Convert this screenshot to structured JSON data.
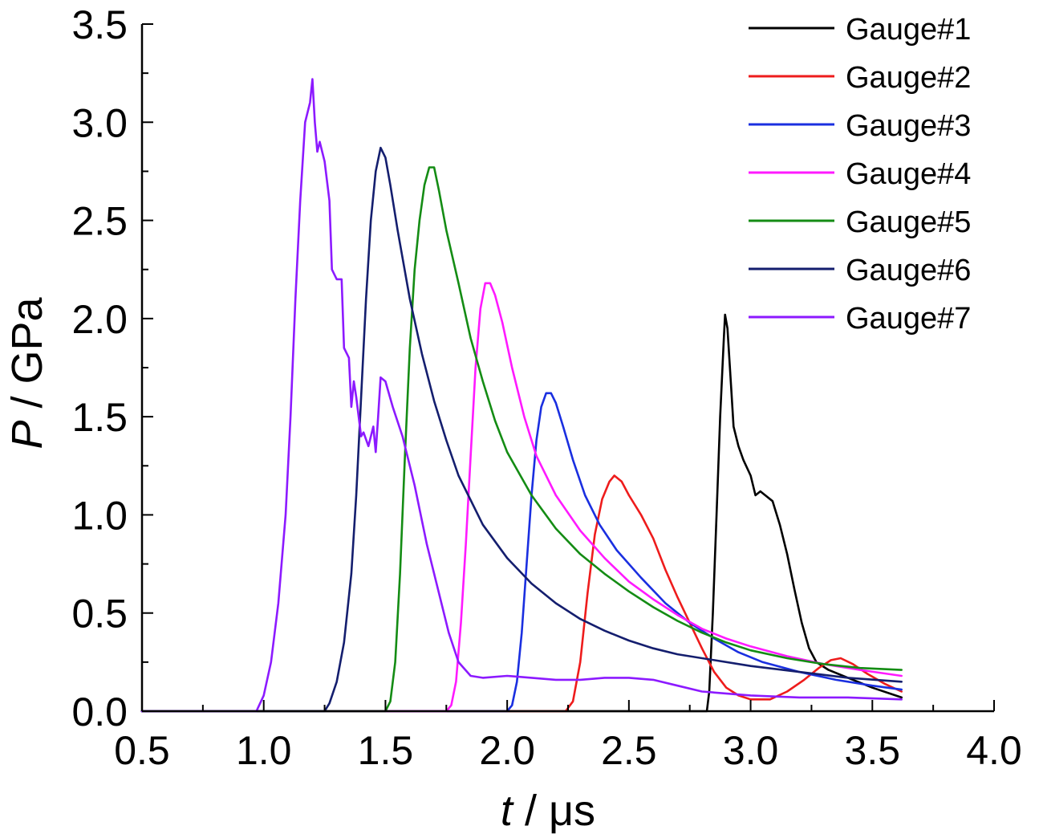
{
  "chart_data": {
    "type": "line",
    "title": "",
    "xlabel": {
      "symbol": "t",
      "unit": " / μs"
    },
    "ylabel": {
      "symbol": "P",
      "unit": " / GPa"
    },
    "xlim": [
      0.5,
      4.0
    ],
    "ylim": [
      0.0,
      3.5
    ],
    "xticks": [
      0.5,
      1.0,
      1.5,
      2.0,
      2.5,
      3.0,
      3.5,
      4.0
    ],
    "xtick_labels": [
      "0.5",
      "1.0",
      "1.5",
      "2.0",
      "2.5",
      "3.0",
      "3.5",
      "4.0"
    ],
    "yticks": [
      0.0,
      0.5,
      1.0,
      1.5,
      2.0,
      2.5,
      3.0,
      3.5
    ],
    "ytick_labels": [
      "0.0",
      "0.5",
      "1.0",
      "1.5",
      "2.0",
      "2.5",
      "3.0",
      "3.5"
    ],
    "grid": false,
    "legend": "top-right",
    "series": [
      {
        "name": "Gauge#1",
        "color": "#000000",
        "points": [
          [
            0.5,
            0
          ],
          [
            2.82,
            0
          ],
          [
            2.83,
            0.1
          ],
          [
            2.845,
            0.5
          ],
          [
            2.86,
            1.0
          ],
          [
            2.875,
            1.5
          ],
          [
            2.89,
            1.9
          ],
          [
            2.895,
            2.02
          ],
          [
            2.905,
            1.95
          ],
          [
            2.92,
            1.65
          ],
          [
            2.93,
            1.45
          ],
          [
            2.95,
            1.35
          ],
          [
            2.97,
            1.28
          ],
          [
            3.0,
            1.2
          ],
          [
            3.02,
            1.1
          ],
          [
            3.04,
            1.12
          ],
          [
            3.06,
            1.1
          ],
          [
            3.09,
            1.07
          ],
          [
            3.12,
            0.95
          ],
          [
            3.15,
            0.8
          ],
          [
            3.18,
            0.62
          ],
          [
            3.21,
            0.45
          ],
          [
            3.24,
            0.32
          ],
          [
            3.27,
            0.25
          ],
          [
            3.32,
            0.21
          ],
          [
            3.4,
            0.17
          ],
          [
            3.5,
            0.12
          ],
          [
            3.62,
            0.07
          ]
        ]
      },
      {
        "name": "Gauge#2",
        "color": "#ee1c1c",
        "points": [
          [
            0.5,
            0
          ],
          [
            2.24,
            0
          ],
          [
            2.27,
            0.05
          ],
          [
            2.3,
            0.25
          ],
          [
            2.33,
            0.6
          ],
          [
            2.36,
            0.9
          ],
          [
            2.39,
            1.08
          ],
          [
            2.42,
            1.17
          ],
          [
            2.44,
            1.2
          ],
          [
            2.47,
            1.17
          ],
          [
            2.5,
            1.1
          ],
          [
            2.55,
            1.0
          ],
          [
            2.6,
            0.88
          ],
          [
            2.65,
            0.72
          ],
          [
            2.7,
            0.58
          ],
          [
            2.75,
            0.45
          ],
          [
            2.8,
            0.32
          ],
          [
            2.85,
            0.2
          ],
          [
            2.9,
            0.12
          ],
          [
            2.95,
            0.08
          ],
          [
            3.0,
            0.06
          ],
          [
            3.08,
            0.06
          ],
          [
            3.15,
            0.1
          ],
          [
            3.22,
            0.16
          ],
          [
            3.28,
            0.22
          ],
          [
            3.33,
            0.26
          ],
          [
            3.37,
            0.27
          ],
          [
            3.42,
            0.24
          ],
          [
            3.48,
            0.19
          ],
          [
            3.55,
            0.14
          ],
          [
            3.62,
            0.1
          ]
        ]
      },
      {
        "name": "Gauge#3",
        "color": "#1a2fe0",
        "points": [
          [
            0.5,
            0
          ],
          [
            2.0,
            0
          ],
          [
            2.02,
            0.03
          ],
          [
            2.04,
            0.15
          ],
          [
            2.06,
            0.4
          ],
          [
            2.08,
            0.75
          ],
          [
            2.1,
            1.1
          ],
          [
            2.12,
            1.38
          ],
          [
            2.14,
            1.55
          ],
          [
            2.16,
            1.62
          ],
          [
            2.18,
            1.62
          ],
          [
            2.2,
            1.57
          ],
          [
            2.23,
            1.45
          ],
          [
            2.27,
            1.28
          ],
          [
            2.32,
            1.1
          ],
          [
            2.38,
            0.95
          ],
          [
            2.45,
            0.82
          ],
          [
            2.55,
            0.68
          ],
          [
            2.65,
            0.55
          ],
          [
            2.75,
            0.45
          ],
          [
            2.85,
            0.37
          ],
          [
            2.95,
            0.3
          ],
          [
            3.05,
            0.25
          ],
          [
            3.2,
            0.2
          ],
          [
            3.35,
            0.16
          ],
          [
            3.5,
            0.13
          ],
          [
            3.62,
            0.11
          ]
        ]
      },
      {
        "name": "Gauge#4",
        "color": "#ff1aff",
        "points": [
          [
            0.5,
            0
          ],
          [
            1.75,
            0
          ],
          [
            1.77,
            0.03
          ],
          [
            1.79,
            0.15
          ],
          [
            1.81,
            0.45
          ],
          [
            1.83,
            0.85
          ],
          [
            1.85,
            1.3
          ],
          [
            1.87,
            1.75
          ],
          [
            1.89,
            2.05
          ],
          [
            1.91,
            2.18
          ],
          [
            1.93,
            2.18
          ],
          [
            1.95,
            2.12
          ],
          [
            1.98,
            1.98
          ],
          [
            2.02,
            1.75
          ],
          [
            2.07,
            1.5
          ],
          [
            2.12,
            1.3
          ],
          [
            2.2,
            1.1
          ],
          [
            2.3,
            0.92
          ],
          [
            2.4,
            0.78
          ],
          [
            2.5,
            0.66
          ],
          [
            2.6,
            0.57
          ],
          [
            2.7,
            0.49
          ],
          [
            2.8,
            0.42
          ],
          [
            2.9,
            0.37
          ],
          [
            3.0,
            0.33
          ],
          [
            3.15,
            0.28
          ],
          [
            3.3,
            0.24
          ],
          [
            3.45,
            0.21
          ],
          [
            3.62,
            0.18
          ]
        ]
      },
      {
        "name": "Gauge#5",
        "color": "#148c14",
        "points": [
          [
            0.5,
            0
          ],
          [
            1.5,
            0
          ],
          [
            1.52,
            0.05
          ],
          [
            1.54,
            0.25
          ],
          [
            1.56,
            0.7
          ],
          [
            1.58,
            1.3
          ],
          [
            1.6,
            1.85
          ],
          [
            1.62,
            2.25
          ],
          [
            1.64,
            2.5
          ],
          [
            1.66,
            2.68
          ],
          [
            1.68,
            2.77
          ],
          [
            1.7,
            2.77
          ],
          [
            1.72,
            2.65
          ],
          [
            1.75,
            2.45
          ],
          [
            1.8,
            2.18
          ],
          [
            1.85,
            1.9
          ],
          [
            1.9,
            1.68
          ],
          [
            1.95,
            1.48
          ],
          [
            2.0,
            1.32
          ],
          [
            2.1,
            1.1
          ],
          [
            2.2,
            0.93
          ],
          [
            2.3,
            0.8
          ],
          [
            2.4,
            0.7
          ],
          [
            2.5,
            0.61
          ],
          [
            2.6,
            0.53
          ],
          [
            2.7,
            0.46
          ],
          [
            2.8,
            0.4
          ],
          [
            2.9,
            0.35
          ],
          [
            3.0,
            0.31
          ],
          [
            3.15,
            0.27
          ],
          [
            3.3,
            0.24
          ],
          [
            3.45,
            0.22
          ],
          [
            3.62,
            0.21
          ]
        ]
      },
      {
        "name": "Gauge#6",
        "color": "#141e6e",
        "points": [
          [
            0.5,
            0
          ],
          [
            1.25,
            0
          ],
          [
            1.27,
            0.04
          ],
          [
            1.3,
            0.15
          ],
          [
            1.33,
            0.35
          ],
          [
            1.36,
            0.7
          ],
          [
            1.38,
            1.1
          ],
          [
            1.4,
            1.6
          ],
          [
            1.42,
            2.1
          ],
          [
            1.44,
            2.5
          ],
          [
            1.46,
            2.75
          ],
          [
            1.48,
            2.87
          ],
          [
            1.5,
            2.82
          ],
          [
            1.52,
            2.68
          ],
          [
            1.55,
            2.45
          ],
          [
            1.6,
            2.1
          ],
          [
            1.65,
            1.82
          ],
          [
            1.7,
            1.58
          ],
          [
            1.75,
            1.38
          ],
          [
            1.8,
            1.2
          ],
          [
            1.9,
            0.95
          ],
          [
            2.0,
            0.78
          ],
          [
            2.1,
            0.65
          ],
          [
            2.2,
            0.55
          ],
          [
            2.3,
            0.47
          ],
          [
            2.4,
            0.41
          ],
          [
            2.5,
            0.36
          ],
          [
            2.6,
            0.32
          ],
          [
            2.7,
            0.29
          ],
          [
            2.85,
            0.26
          ],
          [
            3.0,
            0.23
          ],
          [
            3.2,
            0.2
          ],
          [
            3.4,
            0.17
          ],
          [
            3.62,
            0.15
          ]
        ]
      },
      {
        "name": "Gauge#7",
        "color": "#8c1aff",
        "points": [
          [
            0.5,
            0
          ],
          [
            0.97,
            0
          ],
          [
            1.0,
            0.08
          ],
          [
            1.03,
            0.25
          ],
          [
            1.06,
            0.55
          ],
          [
            1.09,
            1.0
          ],
          [
            1.11,
            1.5
          ],
          [
            1.13,
            2.1
          ],
          [
            1.15,
            2.6
          ],
          [
            1.17,
            3.0
          ],
          [
            1.19,
            3.1
          ],
          [
            1.2,
            3.22
          ],
          [
            1.21,
            3.0
          ],
          [
            1.22,
            2.85
          ],
          [
            1.23,
            2.9
          ],
          [
            1.25,
            2.8
          ],
          [
            1.27,
            2.6
          ],
          [
            1.28,
            2.25
          ],
          [
            1.3,
            2.2
          ],
          [
            1.32,
            2.2
          ],
          [
            1.33,
            1.85
          ],
          [
            1.35,
            1.8
          ],
          [
            1.36,
            1.55
          ],
          [
            1.37,
            1.68
          ],
          [
            1.38,
            1.6
          ],
          [
            1.4,
            1.4
          ],
          [
            1.41,
            1.42
          ],
          [
            1.43,
            1.35
          ],
          [
            1.45,
            1.45
          ],
          [
            1.46,
            1.32
          ],
          [
            1.47,
            1.5
          ],
          [
            1.48,
            1.7
          ],
          [
            1.5,
            1.68
          ],
          [
            1.53,
            1.55
          ],
          [
            1.57,
            1.4
          ],
          [
            1.62,
            1.15
          ],
          [
            1.67,
            0.85
          ],
          [
            1.72,
            0.6
          ],
          [
            1.76,
            0.4
          ],
          [
            1.8,
            0.25
          ],
          [
            1.85,
            0.18
          ],
          [
            1.9,
            0.17
          ],
          [
            2.0,
            0.18
          ],
          [
            2.1,
            0.17
          ],
          [
            2.2,
            0.16
          ],
          [
            2.3,
            0.16
          ],
          [
            2.4,
            0.17
          ],
          [
            2.5,
            0.17
          ],
          [
            2.6,
            0.16
          ],
          [
            2.7,
            0.13
          ],
          [
            2.8,
            0.1
          ],
          [
            3.0,
            0.08
          ],
          [
            3.2,
            0.07
          ],
          [
            3.4,
            0.07
          ],
          [
            3.62,
            0.06
          ]
        ]
      }
    ]
  }
}
